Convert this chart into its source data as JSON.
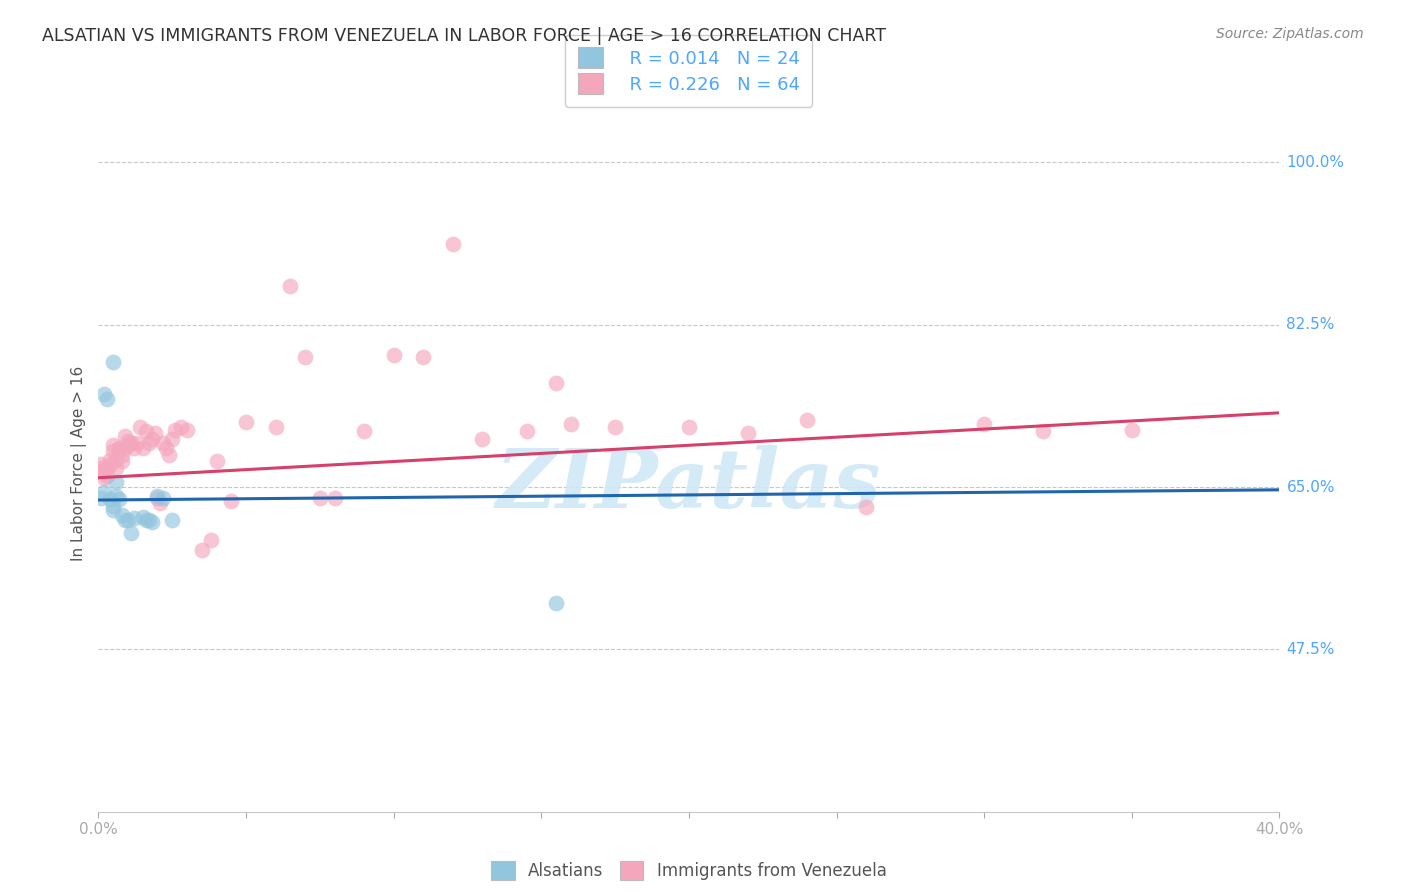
{
  "title": "ALSATIAN VS IMMIGRANTS FROM VENEZUELA IN LABOR FORCE | AGE > 16 CORRELATION CHART",
  "source": "Source: ZipAtlas.com",
  "ylabel": "In Labor Force | Age > 16",
  "xlim": [
    0.0,
    0.4
  ],
  "ylim": [
    0.3,
    1.05
  ],
  "xticks": [
    0.0,
    0.05,
    0.1,
    0.15,
    0.2,
    0.25,
    0.3,
    0.35,
    0.4
  ],
  "xticklabels": [
    "0.0%",
    "",
    "",
    "",
    "",
    "",
    "",
    "",
    "40.0%"
  ],
  "ytick_vals": [
    0.475,
    0.65,
    0.825,
    1.0
  ],
  "yticklabels": [
    "47.5%",
    "65.0%",
    "82.5%",
    "100.0%"
  ],
  "grid_color": "#c8c8c8",
  "background_color": "#ffffff",
  "blue_color": "#92c5de",
  "pink_color": "#f4a6bc",
  "blue_line_color": "#2166ac",
  "pink_line_color": "#d6406a",
  "watermark_text": "ZIPatlas",
  "watermark_color": "#d0e8f5",
  "legend_R_blue": "R = 0.014",
  "legend_N_blue": "N = 24",
  "legend_R_pink": "R = 0.226",
  "legend_N_pink": "N = 64",
  "legend_text_color": "#4da6ff",
  "title_color": "#333333",
  "source_color": "#888888",
  "ylabel_color": "#555555",
  "axis_color": "#4da6ff",
  "blue_dots_x": [
    0.001,
    0.002,
    0.002,
    0.003,
    0.004,
    0.005,
    0.005,
    0.006,
    0.006,
    0.007,
    0.008,
    0.009,
    0.01,
    0.011,
    0.012,
    0.015,
    0.016,
    0.017,
    0.018,
    0.02,
    0.022,
    0.025,
    0.155,
    0.005
  ],
  "blue_dots_y": [
    0.638,
    0.645,
    0.75,
    0.745,
    0.637,
    0.63,
    0.625,
    0.655,
    0.64,
    0.637,
    0.62,
    0.615,
    0.615,
    0.6,
    0.617,
    0.618,
    0.615,
    0.615,
    0.612,
    0.64,
    0.638,
    0.614,
    0.525,
    0.785
  ],
  "pink_dots_x": [
    0.001,
    0.001,
    0.002,
    0.002,
    0.003,
    0.003,
    0.004,
    0.004,
    0.005,
    0.005,
    0.006,
    0.006,
    0.007,
    0.007,
    0.008,
    0.008,
    0.009,
    0.009,
    0.01,
    0.01,
    0.011,
    0.012,
    0.013,
    0.014,
    0.015,
    0.016,
    0.017,
    0.018,
    0.019,
    0.02,
    0.021,
    0.022,
    0.023,
    0.024,
    0.025,
    0.026,
    0.028,
    0.03,
    0.035,
    0.038,
    0.04,
    0.045,
    0.05,
    0.06,
    0.065,
    0.07,
    0.075,
    0.08,
    0.09,
    0.1,
    0.11,
    0.12,
    0.13,
    0.145,
    0.16,
    0.175,
    0.2,
    0.22,
    0.24,
    0.26,
    0.3,
    0.32,
    0.35,
    0.155
  ],
  "pink_dots_y": [
    0.671,
    0.675,
    0.668,
    0.66,
    0.662,
    0.67,
    0.679,
    0.674,
    0.689,
    0.695,
    0.68,
    0.671,
    0.69,
    0.692,
    0.685,
    0.678,
    0.705,
    0.692,
    0.7,
    0.695,
    0.698,
    0.692,
    0.698,
    0.715,
    0.692,
    0.71,
    0.698,
    0.702,
    0.708,
    0.638,
    0.633,
    0.698,
    0.692,
    0.685,
    0.702,
    0.712,
    0.715,
    0.712,
    0.582,
    0.593,
    0.678,
    0.635,
    0.72,
    0.715,
    0.867,
    0.79,
    0.638,
    0.638,
    0.71,
    0.792,
    0.79,
    0.912,
    0.702,
    0.71,
    0.718,
    0.715,
    0.715,
    0.708,
    0.722,
    0.628,
    0.718,
    0.71,
    0.712,
    0.762
  ],
  "blue_trendline_x": [
    0.0,
    0.4
  ],
  "blue_trendline_y": [
    0.636,
    0.647
  ],
  "pink_trendline_x": [
    0.0,
    0.4
  ],
  "pink_trendline_y": [
    0.66,
    0.73
  ]
}
